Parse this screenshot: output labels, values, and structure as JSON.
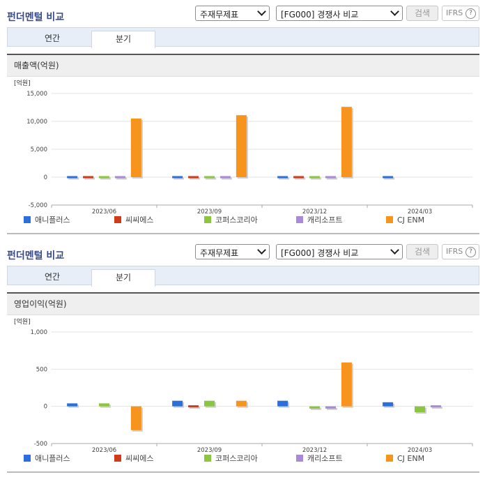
{
  "panels": [
    {
      "title": "펀더멘털 비교",
      "select_type": "주재무제표",
      "select_group": "[FG000] 경쟁사 비교",
      "search_label": "검색",
      "ifrs_label": "IFRS",
      "help_icon": "?",
      "tabs": [
        {
          "label": "연간",
          "active": false
        },
        {
          "label": "분기",
          "active": true
        }
      ],
      "metric": "매출액(억원)"
    },
    {
      "title": "펀더멘털 비교",
      "select_type": "주재무제표",
      "select_group": "[FG000] 경쟁사 비교",
      "search_label": "검색",
      "ifrs_label": "IFRS",
      "help_icon": "?",
      "tabs": [
        {
          "label": "연간",
          "active": false
        },
        {
          "label": "분기",
          "active": true
        }
      ],
      "metric": "영업이익(억원)"
    }
  ],
  "chart_data": [
    {
      "type": "bar",
      "unit_label": "[억원]",
      "categories": [
        "2023/06",
        "2023/09",
        "2023/12",
        "2024/03"
      ],
      "ylim": [
        -5000,
        15000
      ],
      "yticks": [
        -5000,
        0,
        5000,
        10000,
        15000
      ],
      "ytick_labels": [
        "-5,000",
        "0",
        "5,000",
        "10,000",
        "15,000"
      ],
      "grid": true,
      "legend_position": "bottom",
      "series": [
        {
          "name": "애니플러스",
          "color": "#2a6fdb",
          "values": [
            250,
            300,
            250,
            250
          ]
        },
        {
          "name": "씨씨에스",
          "color": "#d03a16",
          "values": [
            10,
            10,
            10,
            null
          ]
        },
        {
          "name": "코퍼스코리아",
          "color": "#8cc63f",
          "values": [
            -250,
            200,
            -250,
            null
          ]
        },
        {
          "name": "캐리소프트",
          "color": "#a98ad8",
          "values": [
            20,
            20,
            20,
            null
          ]
        },
        {
          "name": "CJ ENM",
          "color": "#f7941d",
          "values": [
            10500,
            11100,
            12600,
            null
          ]
        }
      ]
    },
    {
      "type": "bar",
      "unit_label": "[억원]",
      "categories": [
        "2023/06",
        "2023/09",
        "2023/12",
        "2024/03"
      ],
      "ylim": [
        -500,
        1000
      ],
      "yticks": [
        -500,
        0,
        500,
        1000
      ],
      "ytick_labels": [
        "-500",
        "0",
        "500",
        "1,000"
      ],
      "grid": true,
      "legend_position": "bottom",
      "series": [
        {
          "name": "애니플러스",
          "color": "#2a6fdb",
          "values": [
            40,
            75,
            75,
            55
          ]
        },
        {
          "name": "씨씨에스",
          "color": "#d03a16",
          "values": [
            null,
            -10,
            null,
            null
          ]
        },
        {
          "name": "코퍼스코리아",
          "color": "#8cc63f",
          "values": [
            40,
            75,
            -30,
            -80
          ]
        },
        {
          "name": "캐리소프트",
          "color": "#a98ad8",
          "values": [
            null,
            null,
            -30,
            -20
          ]
        },
        {
          "name": "CJ ENM",
          "color": "#f7941d",
          "values": [
            -320,
            75,
            590,
            null
          ]
        }
      ]
    }
  ]
}
